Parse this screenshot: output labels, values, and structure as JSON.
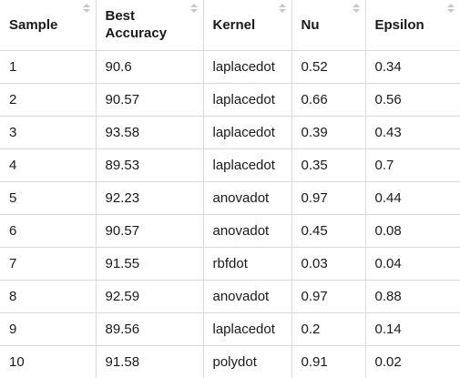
{
  "table": {
    "headers": [
      "Sample",
      "Best Accuracy",
      "Kernel",
      "Nu",
      "Epsilon"
    ],
    "rows": [
      [
        "1",
        "90.6",
        "laplacedot",
        "0.52",
        "0.34"
      ],
      [
        "2",
        "90.57",
        "laplacedot",
        "0.66",
        "0.56"
      ],
      [
        "3",
        "93.58",
        "laplacedot",
        "0.39",
        "0.43"
      ],
      [
        "4",
        "89.53",
        "laplacedot",
        "0.35",
        "0.7"
      ],
      [
        "5",
        "92.23",
        "anovadot",
        "0.97",
        "0.44"
      ],
      [
        "6",
        "90.57",
        "anovadot",
        "0.45",
        "0.08"
      ],
      [
        "7",
        "91.55",
        "rbfdot",
        "0.03",
        "0.04"
      ],
      [
        "8",
        "92.59",
        "anovadot",
        "0.97",
        "0.88"
      ],
      [
        "9",
        "89.56",
        "laplacedot",
        "0.2",
        "0.14"
      ],
      [
        "10",
        "91.58",
        "polydot",
        "0.91",
        "0.02"
      ]
    ]
  }
}
